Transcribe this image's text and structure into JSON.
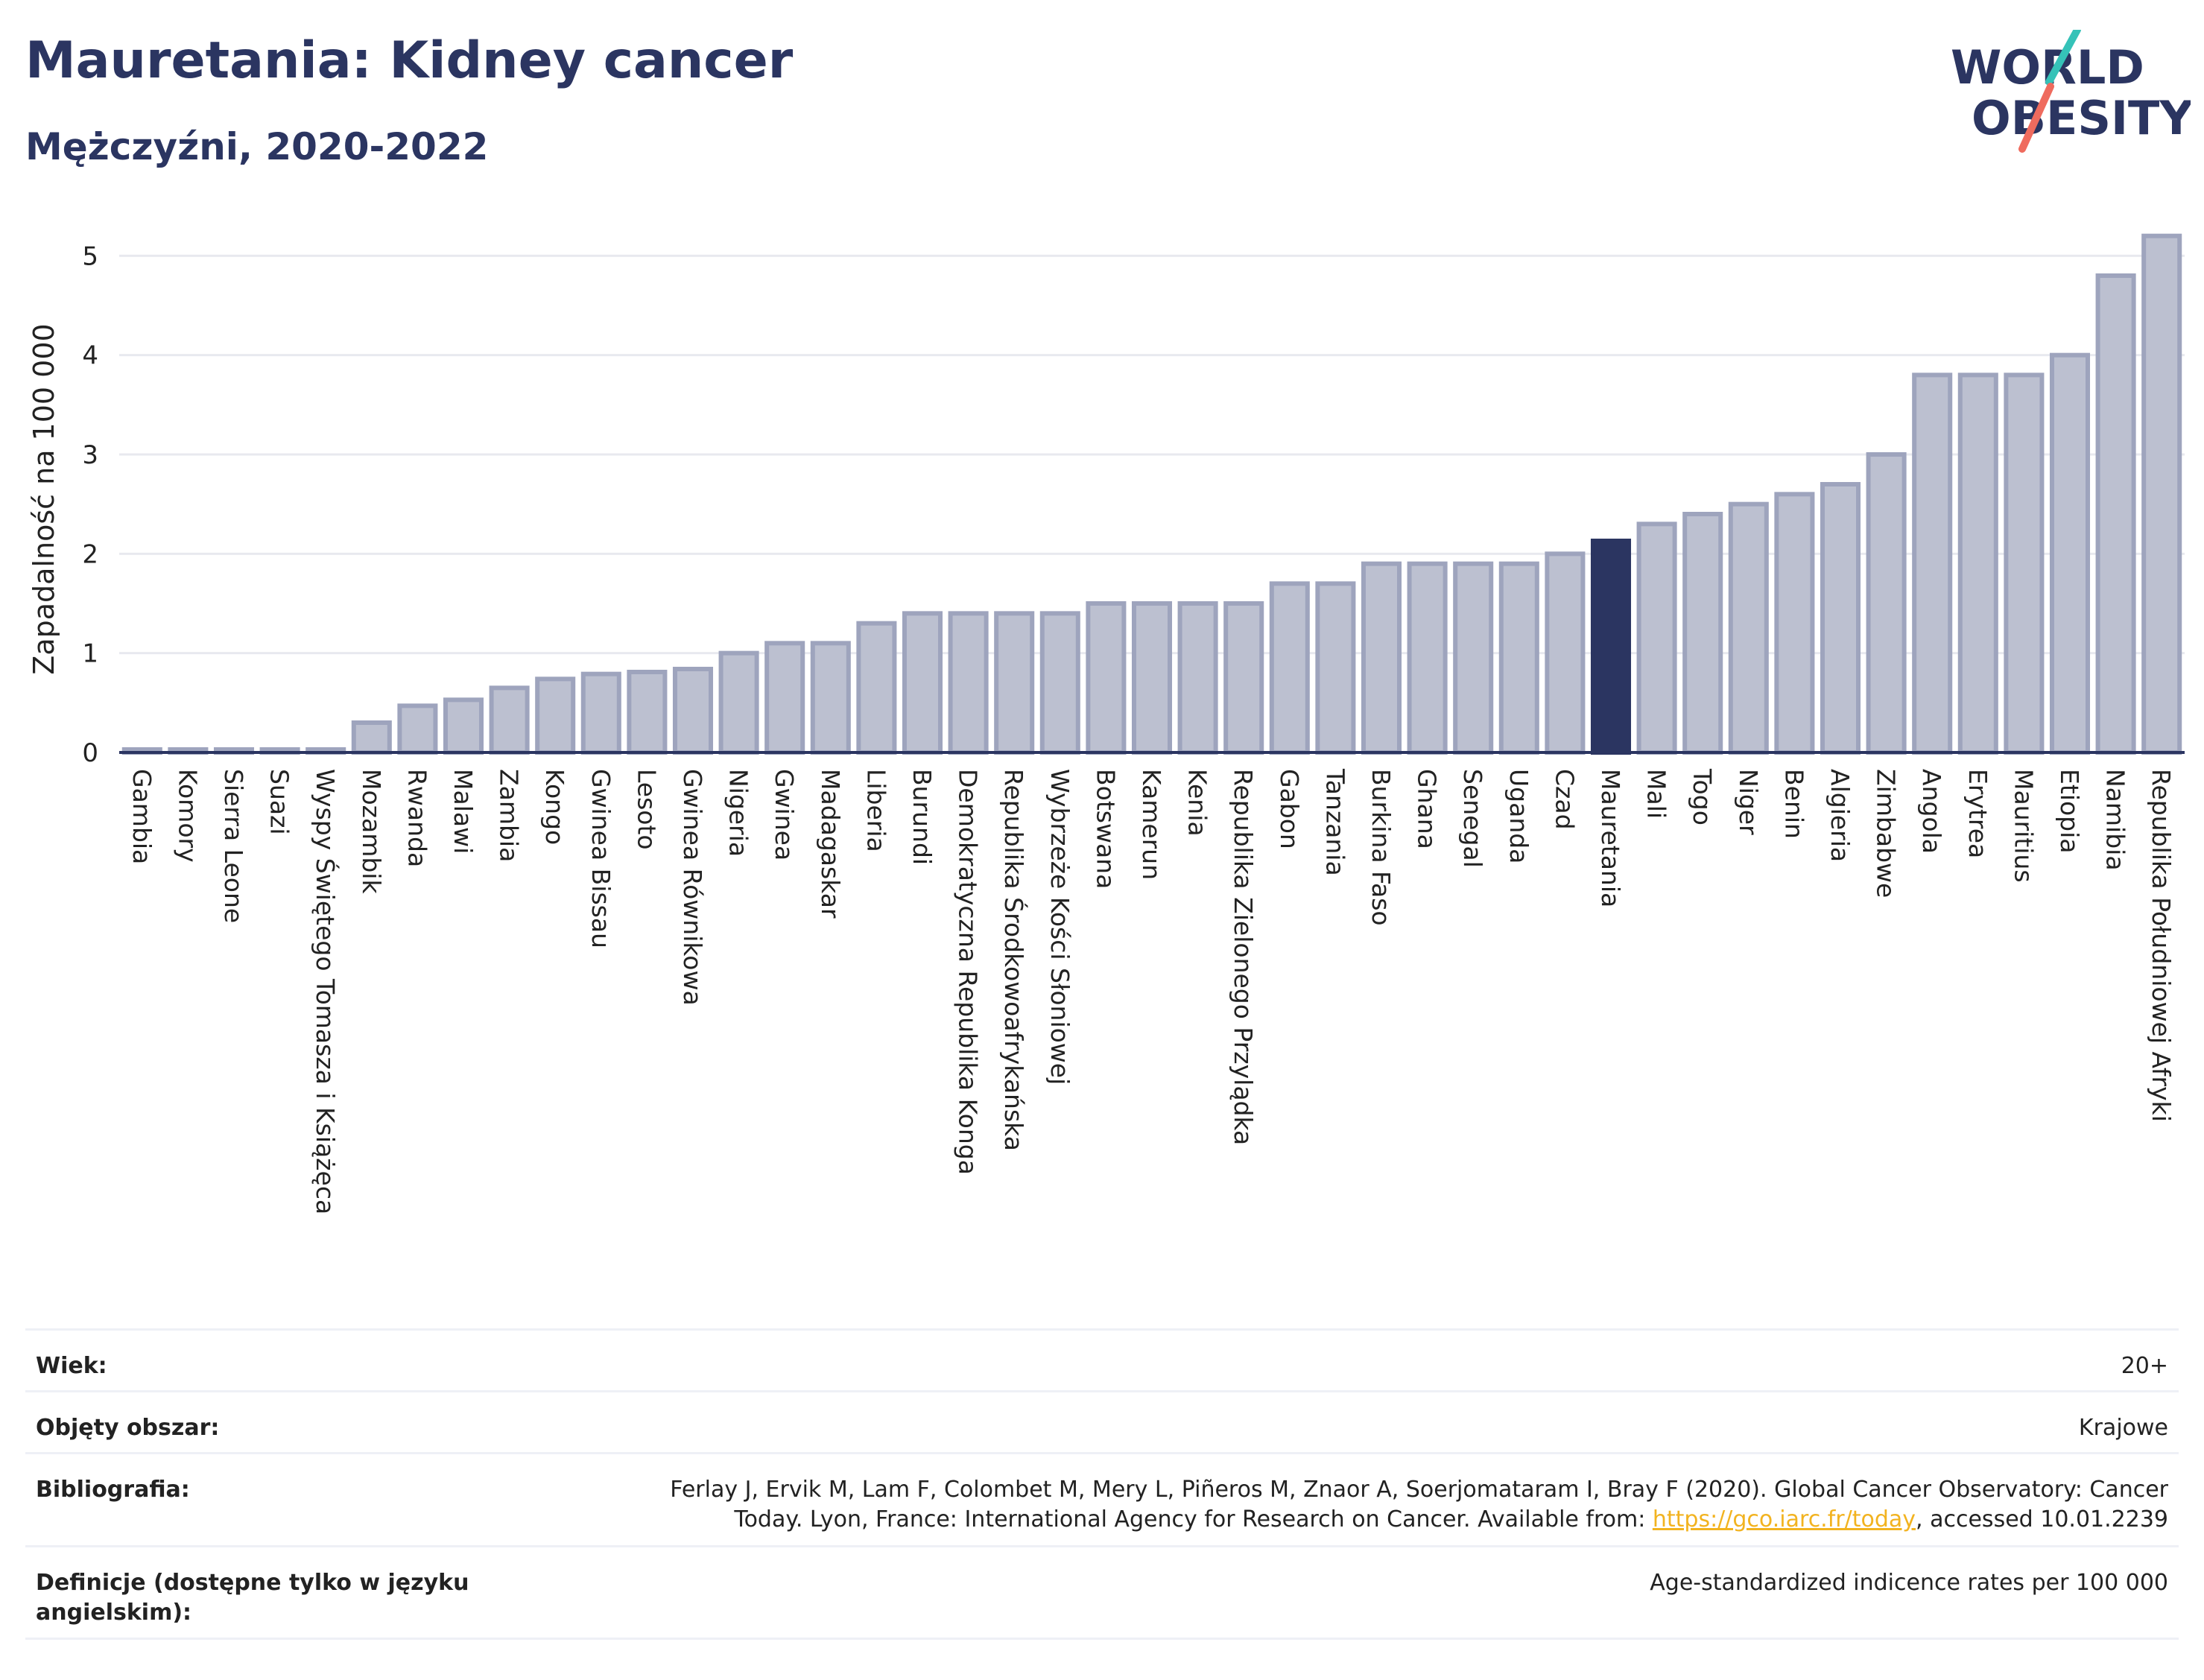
{
  "header": {
    "title": "Mauretania: Kidney cancer",
    "subtitle": "Mężczyźni, 2020-2022"
  },
  "logo": {
    "line1": "WORLD",
    "line2": "OBESITY",
    "slash_colors": [
      "#35c2b8",
      "#ef6b5e"
    ]
  },
  "colors": {
    "bar_fill": "#bcc0d0",
    "bar_stroke": "#9ea4bd",
    "highlight": "#2b3561",
    "grid": "#e8e9ef",
    "axis": "#2b3561"
  },
  "chart_data": {
    "type": "bar",
    "ylabel": "Zapadalność na 100 000",
    "ylim": [
      0,
      5.4
    ],
    "yticks": [
      0,
      1,
      2,
      3,
      4,
      5
    ],
    "grid": true,
    "highlight_category": "Mauretania",
    "categories": [
      "Gambia",
      "Komory",
      "Sierra Leone",
      "Suazi",
      "Wyspy Świętego Tomasza i Książęca",
      "Mozambik",
      "Rwanda",
      "Malawi",
      "Zambia",
      "Kongo",
      "Gwinea Bissau",
      "Lesoto",
      "Gwinea Równikowa",
      "Nigeria",
      "Gwinea",
      "Madagaskar",
      "Liberia",
      "Burundi",
      "Demokratyczna Republika Konga",
      "Republika Środkowoafrykańska",
      "Wybrzeże Kości Słoniowej",
      "Botswana",
      "Kamerun",
      "Kenia",
      "Republika Zielonego Przylądka",
      "Gabon",
      "Tanzania",
      "Burkina Faso",
      "Ghana",
      "Senegal",
      "Uganda",
      "Czad",
      "Mauretania",
      "Mali",
      "Togo",
      "Niger",
      "Benin",
      "Algieria",
      "Zimbabwe",
      "Angola",
      "Erytrea",
      "Mauritius",
      "Etiopia",
      "Namibia",
      "Republika Południowej Afryki"
    ],
    "values": [
      0.0,
      0.0,
      0.0,
      0.0,
      0.0,
      0.3,
      0.47,
      0.53,
      0.65,
      0.74,
      0.79,
      0.81,
      0.84,
      1.0,
      1.1,
      1.1,
      1.3,
      1.4,
      1.4,
      1.4,
      1.4,
      1.5,
      1.5,
      1.5,
      1.5,
      1.7,
      1.7,
      1.9,
      1.9,
      1.9,
      1.9,
      2.0,
      2.13,
      2.3,
      2.4,
      2.5,
      2.6,
      2.7,
      3.0,
      3.8,
      3.8,
      3.8,
      4.0,
      4.8,
      5.2
    ]
  },
  "info": {
    "age_label": "Wiek:",
    "age_value": "20+",
    "area_label": "Objęty obszar:",
    "area_value": "Krajowe",
    "biblio_label": "Bibliografia:",
    "biblio_text_1": "Ferlay J, Ervik M, Lam F, Colombet M, Mery L, Piñeros M, Znaor A, Soerjomataram I, Bray F (2020). Global Cancer Observatory: Cancer Today. Lyon, France: International Agency for Research on Cancer. Available from: ",
    "biblio_link": "https://gco.iarc.fr/today",
    "biblio_text_2": ", accessed 10.01.2239",
    "def_label": "Definicje (dostępne tylko w języku angielskim):",
    "def_value": "Age-standardized indicence rates per 100 000"
  }
}
